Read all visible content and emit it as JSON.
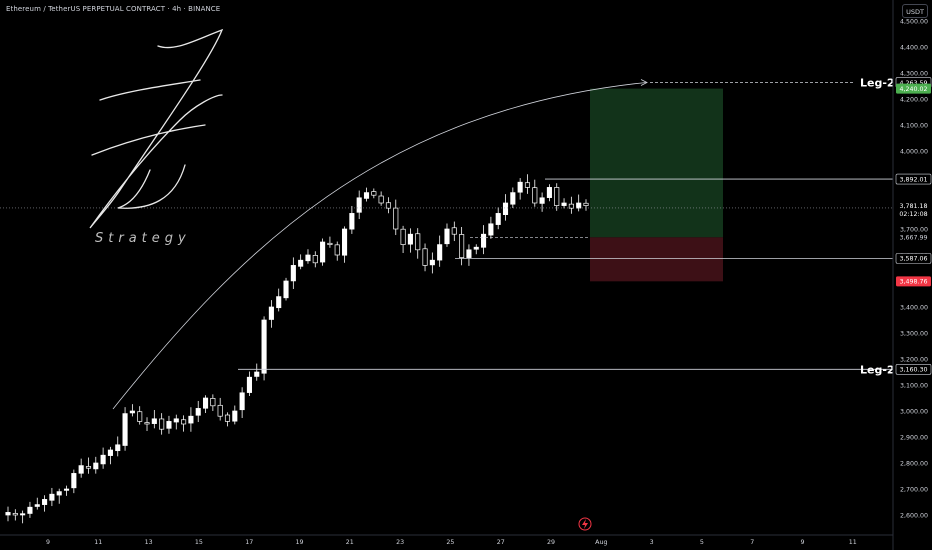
{
  "header": {
    "symbol_line": "Ethereum / TetherUS PERPETUAL CONTRACT · 4h · BINANCE",
    "currency": "USDT"
  },
  "logo": {
    "word": "Strategy"
  },
  "colors": {
    "background": "#000000",
    "up": "#ffffff",
    "down": "#ffffff",
    "profit_zone": "#12331a",
    "loss_zone": "#3d1016",
    "green_label": "#4caf50",
    "red_label": "#f23645",
    "grid_text": "#d1d4dc",
    "level_line": "#d1d4dc"
  },
  "chart_data": {
    "type": "candlestick",
    "timeframe": "4h",
    "x_ticks": [
      "9",
      "11",
      "13",
      "15",
      "17",
      "19",
      "21",
      "23",
      "25",
      "27",
      "29",
      "Aug",
      "3",
      "5",
      "7",
      "9",
      "11"
    ],
    "y_ticks": [
      "4,500.00",
      "4,400.00",
      "4,300.00",
      "4,200.00",
      "4,100.00",
      "4,000.00",
      "3,900.00",
      "3,800.00",
      "3,700.00",
      "3,600.00",
      "3,500.00",
      "3,400.00",
      "3,300.00",
      "3,200.00",
      "3,100.00",
      "3,000.00",
      "2,900.00",
      "2,800.00",
      "2,700.00",
      "2,600.00"
    ],
    "price_labels": [
      {
        "text": "4,263.59",
        "style": "outline"
      },
      {
        "text": "4,240.02",
        "style": "green"
      },
      {
        "text": "3,892.01",
        "style": "outline"
      },
      {
        "text": "3,781.18",
        "style": "current"
      },
      {
        "text": "02:12:08",
        "style": "current"
      },
      {
        "text": "3,667.99",
        "style": "plain"
      },
      {
        "text": "3,587.06",
        "style": "outline"
      },
      {
        "text": "3,498.76",
        "style": "red"
      },
      {
        "text": "3,160.30",
        "style": "outline"
      }
    ],
    "horizontal_levels": [
      3892.01,
      3587.06,
      3160.3
    ],
    "annotations": [
      {
        "label": "Leg-2",
        "price": 4263.59
      },
      {
        "label": "Leg-2",
        "price": 3160.3
      }
    ],
    "position": {
      "entry": 3667.99,
      "target": 4240.02,
      "stop": 3498.76
    },
    "close_series": [
      2610,
      2600,
      2605,
      2630,
      2640,
      2660,
      2680,
      2690,
      2700,
      2760,
      2790,
      2780,
      2800,
      2830,
      2850,
      2870,
      2990,
      3000,
      2960,
      2950,
      2970,
      2930,
      2960,
      2970,
      2950,
      2980,
      3010,
      3050,
      3020,
      2980,
      2960,
      3000,
      3070,
      3130,
      3150,
      3350,
      3400,
      3440,
      3500,
      3560,
      3580,
      3600,
      3570,
      3650,
      3640,
      3600,
      3700,
      3760,
      3820,
      3840,
      3830,
      3800,
      3780,
      3700,
      3640,
      3680,
      3620,
      3560,
      3580,
      3640,
      3700,
      3680,
      3590,
      3620,
      3630,
      3680,
      3720,
      3760,
      3800,
      3840,
      3880,
      3860,
      3800,
      3820,
      3860,
      3790,
      3800,
      3780,
      3800,
      3790
    ]
  }
}
